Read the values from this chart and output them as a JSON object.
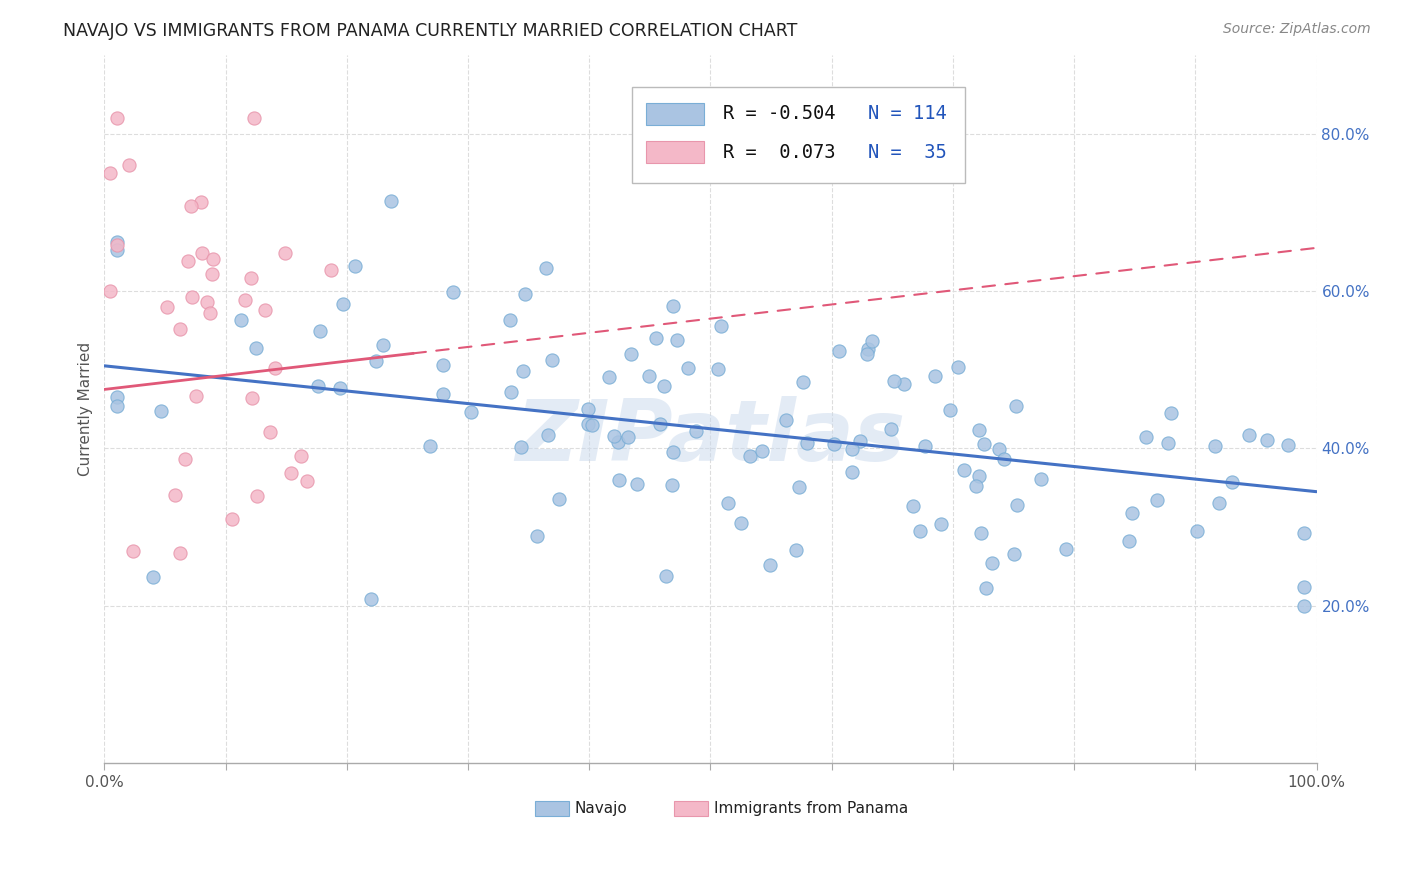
{
  "title": "NAVAJO VS IMMIGRANTS FROM PANAMA CURRENTLY MARRIED CORRELATION CHART",
  "source": "Source: ZipAtlas.com",
  "ylabel": "Currently Married",
  "watermark": "ZIPatlas",
  "navajo_R": -0.504,
  "navajo_N": 114,
  "panama_R": 0.073,
  "panama_N": 35,
  "xlim": [
    0.0,
    1.0
  ],
  "ylim": [
    0.0,
    0.9
  ],
  "xtick_positions": [
    0.0,
    0.1,
    0.2,
    0.3,
    0.4,
    0.5,
    0.6,
    0.7,
    0.8,
    0.9,
    1.0
  ],
  "xtick_labels_show": [
    "0.0%",
    "",
    "",
    "",
    "",
    "",
    "",
    "",
    "",
    "",
    "100.0%"
  ],
  "ytick_positions": [
    0.2,
    0.4,
    0.6,
    0.8
  ],
  "ytick_labels": [
    "20.0%",
    "40.0%",
    "60.0%",
    "80.0%"
  ],
  "navajo_color": "#aac4e2",
  "navajo_edge_color": "#7aaed6",
  "navajo_line_color": "#4472c4",
  "panama_color": "#f4b8c8",
  "panama_edge_color": "#e896ac",
  "panama_line_color": "#e05878",
  "background_color": "#ffffff",
  "grid_color": "#dddddd",
  "title_color": "#222222",
  "source_color": "#888888",
  "legend_text_color": "#2255bb",
  "tick_color": "#aaaaaa",
  "right_tick_color": "#4472c4",
  "navajo_line_y0": 0.505,
  "navajo_line_y1": 0.345,
  "panama_line_y0": 0.475,
  "panama_line_y1": 0.655
}
